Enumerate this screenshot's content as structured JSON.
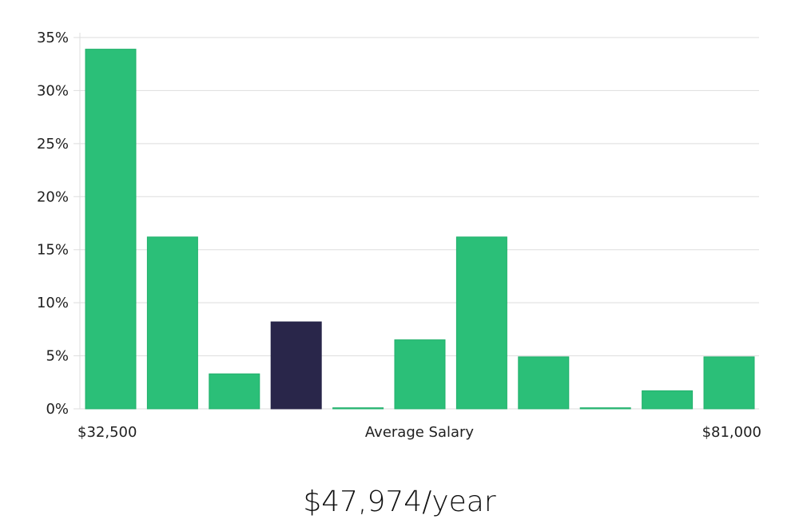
{
  "chart_data": {
    "type": "bar",
    "xlabel": "Average Salary",
    "x_range_labels": {
      "min": "$32,500",
      "max": "$81,000"
    },
    "categories": [
      "1",
      "2",
      "3",
      "4",
      "5",
      "6",
      "7",
      "8",
      "9",
      "10",
      "11"
    ],
    "values": [
      33.9,
      16.2,
      3.3,
      8.2,
      0.1,
      6.5,
      16.2,
      4.9,
      0.1,
      1.7,
      4.9
    ],
    "highlight_index": 3,
    "ylim": [
      0,
      35
    ],
    "yticks": [
      0,
      5,
      10,
      15,
      20,
      25,
      30,
      35
    ],
    "ytick_format": "percent",
    "grid": true,
    "colors": {
      "bar": "#2bbf78",
      "bar_stroke": "#22b06c",
      "highlight": "#29264a",
      "grid": "#dddddd"
    }
  },
  "salary": {
    "text": "$47,974/year"
  }
}
